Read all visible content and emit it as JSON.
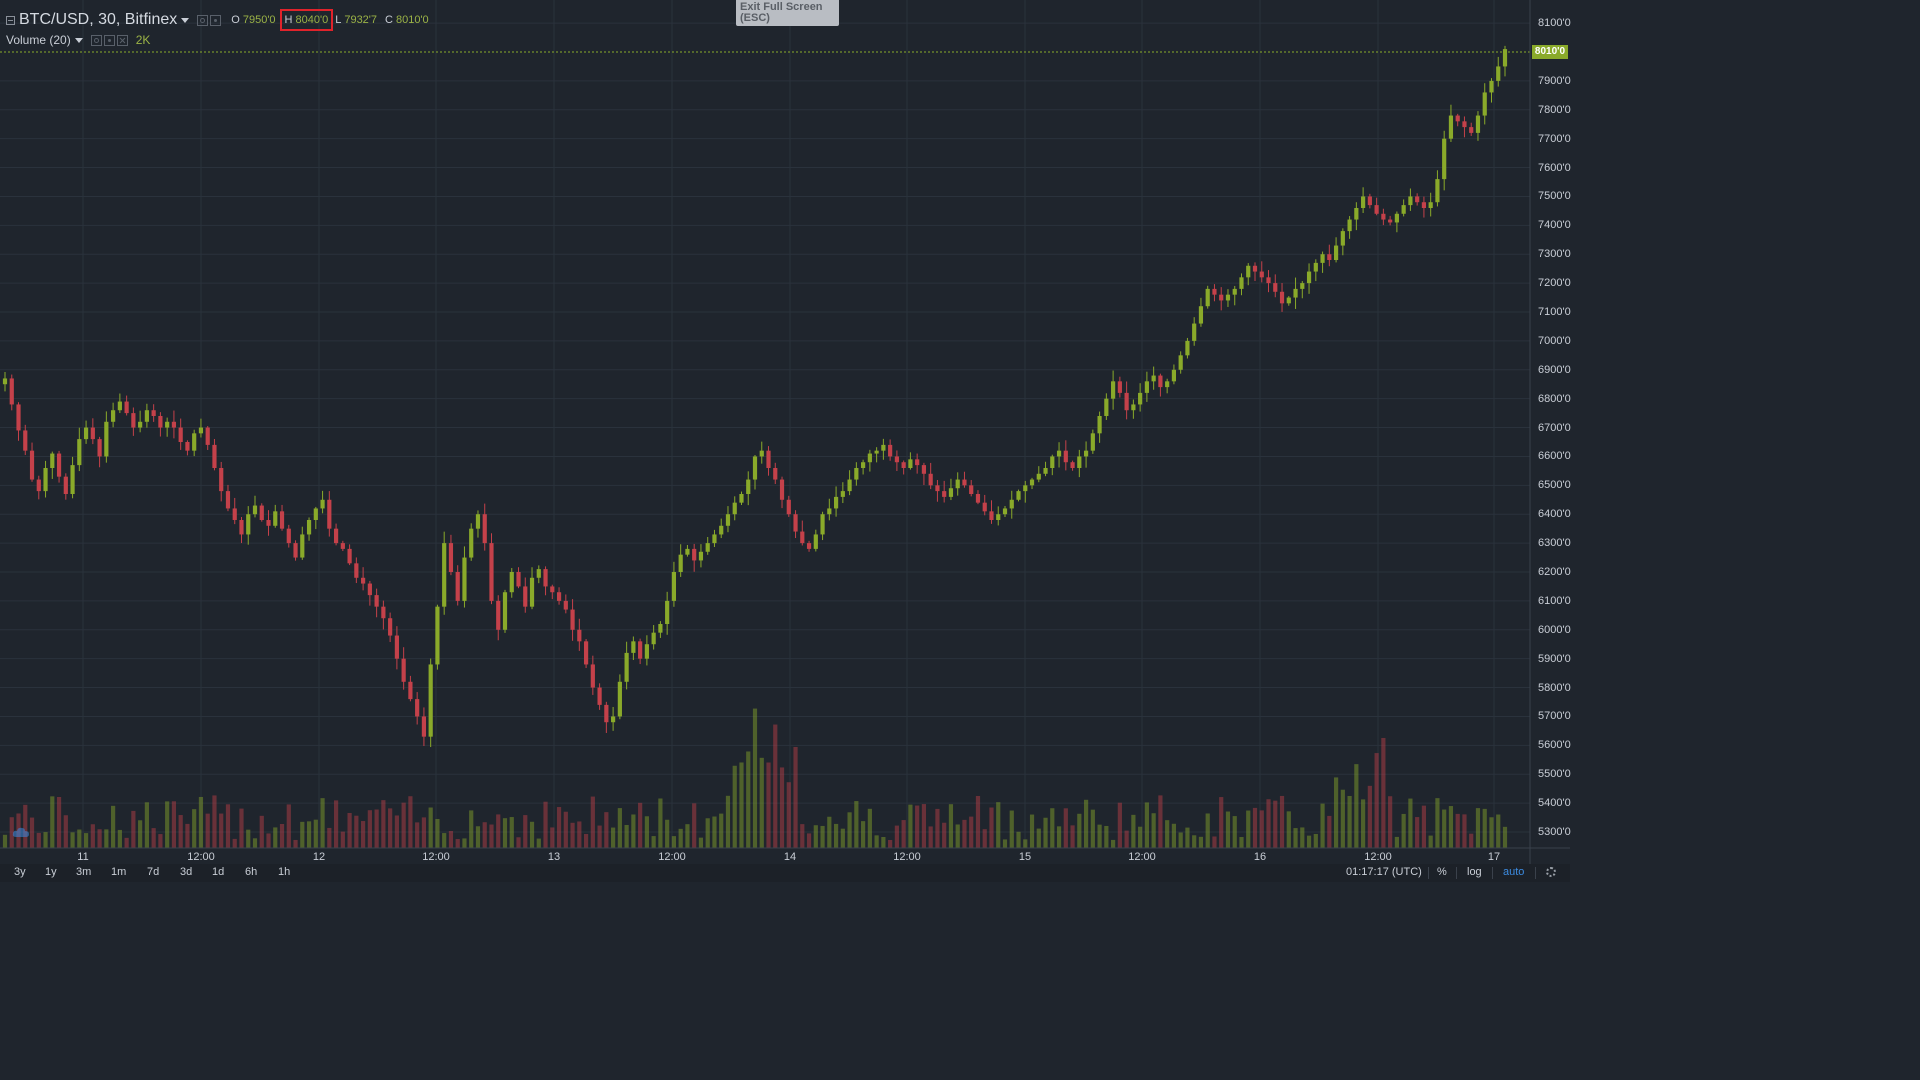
{
  "header": {
    "symbol": "BTC/USD, 30, Bitfinex",
    "ohlc": [
      {
        "label": "O",
        "value": "7950'0"
      },
      {
        "label": "H",
        "value": "8040'0"
      },
      {
        "label": "L",
        "value": "7932'7"
      },
      {
        "label": "C",
        "value": "8010'0"
      }
    ],
    "volume_title": "Volume (20)",
    "volume_value": "2K"
  },
  "exit_fullscreen": "Exit Full Screen (ESC)",
  "last_price": "8010'0",
  "price_axis": [
    "8100'0",
    "7900'0",
    "7800'0",
    "7700'0",
    "7600'0",
    "7500'0",
    "7400'0",
    "7300'0",
    "7200'0",
    "7100'0",
    "7000'0",
    "6900'0",
    "6800'0",
    "6700'0",
    "6600'0",
    "6500'0",
    "6400'0",
    "6300'0",
    "6200'0",
    "6100'0",
    "6000'0",
    "5900'0",
    "5800'0",
    "5700'0",
    "5600'0",
    "5500'0",
    "5400'0",
    "5300'0"
  ],
  "time_axis": [
    "11",
    "12:00",
    "12",
    "12:00",
    "13",
    "12:00",
    "14",
    "12:00",
    "15",
    "12:00",
    "16",
    "12:00",
    "17"
  ],
  "bottom_bar": {
    "ranges": [
      "3y",
      "1y",
      "3m",
      "1m",
      "7d",
      "3d",
      "1d",
      "6h",
      "1h"
    ],
    "clock": "01:17:17 (UTC)",
    "percent": "%",
    "log": "log",
    "auto": "auto"
  },
  "colors": {
    "background": "#1f252d",
    "up": "#8aaa2a",
    "down": "#c4414a",
    "grid": "#2a323c"
  },
  "chart_data": {
    "type": "candlestick",
    "title": "BTC/USD, 30, Bitfinex",
    "ylim": [
      5250,
      8150
    ],
    "x_labels": [
      "11",
      "12:00",
      "12",
      "12:00",
      "13",
      "12:00",
      "14",
      "12:00",
      "15",
      "12:00",
      "16",
      "12:00",
      "17"
    ],
    "close_path": [
      6870,
      6780,
      6690,
      6620,
      6520,
      6480,
      6560,
      6610,
      6530,
      6470,
      6570,
      6660,
      6700,
      6660,
      6600,
      6720,
      6760,
      6790,
      6750,
      6700,
      6720,
      6760,
      6740,
      6700,
      6720,
      6700,
      6650,
      6620,
      6680,
      6700,
      6640,
      6560,
      6480,
      6420,
      6380,
      6330,
      6400,
      6430,
      6380,
      6360,
      6410,
      6350,
      6300,
      6250,
      6330,
      6380,
      6420,
      6450,
      6350,
      6300,
      6280,
      6230,
      6180,
      6160,
      6120,
      6080,
      6040,
      5980,
      5900,
      5820,
      5760,
      5700,
      5630,
      5880,
      6080,
      6300,
      6200,
      6100,
      6250,
      6350,
      6400,
      6300,
      6100,
      6000,
      6130,
      6200,
      6150,
      6080,
      6180,
      6210,
      6150,
      6130,
      6100,
      6070,
      6000,
      5960,
      5880,
      5800,
      5740,
      5680,
      5700,
      5820,
      5920,
      5960,
      5900,
      5950,
      5990,
      6020,
      6100,
      6200,
      6260,
      6280,
      6240,
      6270,
      6300,
      6330,
      6360,
      6400,
      6440,
      6470,
      6520,
      6600,
      6620,
      6560,
      6520,
      6450,
      6400,
      6340,
      6300,
      6280,
      6330,
      6400,
      6420,
      6460,
      6480,
      6520,
      6560,
      6580,
      6610,
      6620,
      6640,
      6600,
      6580,
      6560,
      6590,
      6570,
      6540,
      6500,
      6480,
      6460,
      6490,
      6520,
      6500,
      6470,
      6440,
      6410,
      6380,
      6400,
      6420,
      6450,
      6480,
      6500,
      6520,
      6540,
      6560,
      6600,
      6620,
      6580,
      6560,
      6600,
      6620,
      6680,
      6740,
      6800,
      6860,
      6820,
      6760,
      6780,
      6820,
      6860,
      6880,
      6840,
      6860,
      6900,
      6950,
      7000,
      7060,
      7120,
      7180,
      7160,
      7140,
      7160,
      7180,
      7220,
      7260,
      7240,
      7220,
      7200,
      7170,
      7130,
      7150,
      7180,
      7200,
      7240,
      7270,
      7300,
      7280,
      7330,
      7380,
      7420,
      7460,
      7500,
      7470,
      7440,
      7420,
      7410,
      7440,
      7470,
      7500,
      7480,
      7460,
      7480,
      7560,
      7700,
      7780,
      7760,
      7740,
      7720,
      7780,
      7860,
      7900,
      7950,
      8010
    ]
  }
}
